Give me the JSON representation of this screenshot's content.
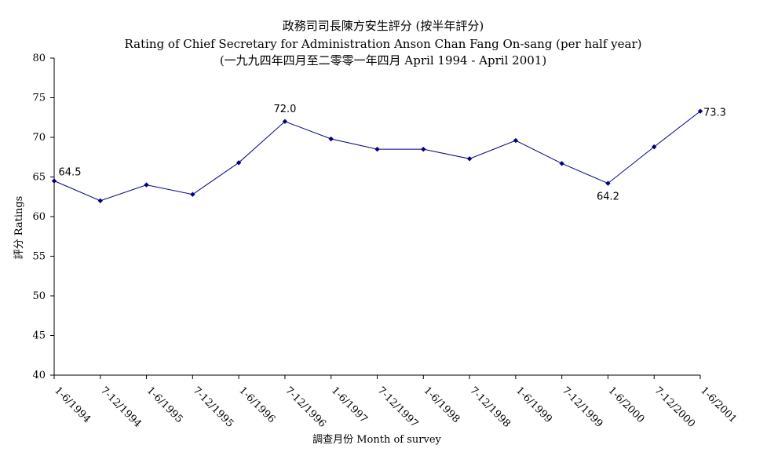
{
  "chart_data": {
    "type": "line",
    "title_lines": [
      "政務司司長陳方安生評分 (按半年評分)",
      "Rating of Chief Secretary for Administration Anson Chan Fang On-sang  (per half year)",
      "(一九九四年四月至二零零一年四月 April 1994 - April 2001)"
    ],
    "xlabel": "調查月份 Month of survey",
    "ylabel": "評分 Ratings",
    "ylim": [
      40,
      80
    ],
    "yticks": [
      40,
      45,
      50,
      55,
      60,
      65,
      70,
      75,
      80
    ],
    "categories": [
      "1-6/1994",
      "7-12/1994",
      "1-6/1995",
      "7-12/1995",
      "1-6/1996",
      "7-12/1996",
      "1-6/1997",
      "7-12/1997",
      "1-6/1998",
      "7-12/1998",
      "1-6/1999",
      "7-12/1999",
      "1-6/2000",
      "7-12/2000",
      "1-6/2001"
    ],
    "series": [
      {
        "color": "#000080",
        "values": [
          64.5,
          62.0,
          64.0,
          62.8,
          66.8,
          72.0,
          69.8,
          68.5,
          68.5,
          67.3,
          69.6,
          66.7,
          64.2,
          68.8,
          73.3
        ]
      }
    ],
    "data_labels": [
      {
        "index": 0,
        "text": "64.5"
      },
      {
        "index": 5,
        "text": "72.0"
      },
      {
        "index": 12,
        "text": "64.2"
      },
      {
        "index": 14,
        "text": "73.3"
      }
    ],
    "grid": false,
    "legend": "none"
  }
}
